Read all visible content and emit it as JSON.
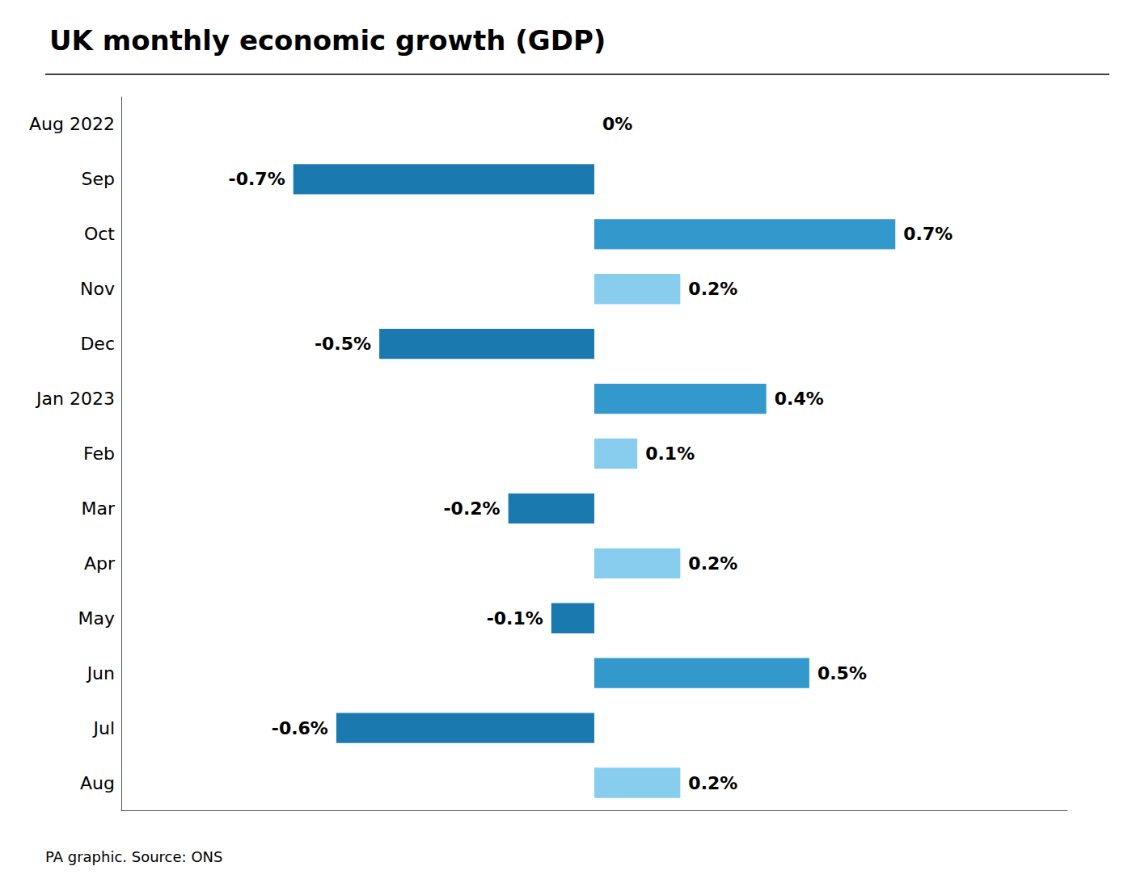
{
  "chart_data": {
    "type": "bar",
    "orientation": "horizontal",
    "title": "UK monthly economic growth (GDP)",
    "annotations": [
      "PA graphic. Source: ONS"
    ],
    "categories": [
      "Aug 2022",
      "Sep",
      "Oct",
      "Nov",
      "Dec",
      "Jan 2023",
      "Feb",
      "Mar",
      "Apr",
      "May",
      "Jun",
      "Jul",
      "Aug"
    ],
    "values": [
      0.0,
      -0.7,
      0.7,
      0.2,
      -0.5,
      0.4,
      0.1,
      -0.2,
      0.2,
      -0.1,
      0.5,
      -0.6,
      0.2
    ],
    "value_labels": [
      "0%",
      "-0.7%",
      "0.7%",
      "0.2%",
      "-0.5%",
      "0.4%",
      "0.1%",
      "-0.2%",
      "0.2%",
      "-0.1%",
      "0.5%",
      "-0.6%",
      "0.2%"
    ],
    "colors": [
      "#88CCEE",
      "#1A7AAF",
      "#3399CC",
      "#88CCEE",
      "#1A7AAF",
      "#3399CC",
      "#88CCEE",
      "#1A7AAF",
      "#88CCEE",
      "#1A7AAF",
      "#3399CC",
      "#1A7AAF",
      "#88CCEE"
    ],
    "xlim": [
      -1.1,
      1.1
    ],
    "data_labels": true,
    "tick_labels": "y",
    "grid": false
  }
}
